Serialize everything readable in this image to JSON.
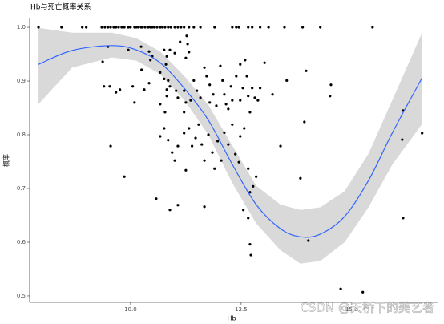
{
  "chart_data": {
    "type": "scatter",
    "title": "Hb与死亡概率关系",
    "x_label": "Hb",
    "y_label": "概率",
    "watermark": "CSDN @天桥下的美艺者",
    "point_color": "#000000",
    "xlim": [
      7.72,
      16.94
    ],
    "ylim": [
      0.488,
      1.018
    ],
    "xticks": [
      {
        "value": 10,
        "label": "10.0"
      },
      {
        "value": 12.5,
        "label": "12.5"
      },
      {
        "value": 15,
        "label": "15.0"
      }
    ],
    "yticks": [
      0.5,
      0.6,
      0.7,
      0.8,
      0.9,
      {
        "value": 1,
        "label": "1.0"
      }
    ],
    "points": {
      "x": [
        7.92,
        8.44,
        8.91,
        9.0,
        9.35,
        9.42,
        9.49,
        9.55,
        9.62,
        9.67,
        9.73,
        9.8,
        9.86,
        9.95,
        10.0,
        10.09,
        10.13,
        10.18,
        10.24,
        10.27,
        10.33,
        10.4,
        10.45,
        10.49,
        10.54,
        10.6,
        10.67,
        10.72,
        10.78,
        10.85,
        10.91,
        11.0,
        11.07,
        11.14,
        11.21,
        11.32,
        11.43,
        11.58,
        11.9,
        12.3,
        12.39,
        12.45,
        12.66,
        12.75,
        12.93,
        13.12,
        13.48,
        13.89,
        14.29,
        15.47,
        9.49,
        9.37,
        9.95,
        10.24,
        10.42,
        10.49,
        10.45,
        10.25,
        10.76,
        10.82,
        10.89,
        11.0,
        11.12,
        11.27,
        11.29,
        11.32,
        11.25,
        10.8,
        10.67,
        10.76,
        10.85,
        10.89,
        10.82,
        10.42,
        10.31,
        10.05,
        9.76,
        9.53,
        9.4,
        9.67,
        10.09,
        10.67,
        10.78,
        10.82,
        11.03,
        11.07,
        11.21,
        11.25,
        11.21,
        11.36,
        11.43,
        11.5,
        11.58,
        11.67,
        11.72,
        11.79,
        11.79,
        11.87,
        11.94,
        12.03,
        12.08,
        12.12,
        12.16,
        12.21,
        12.27,
        12.3,
        12.39,
        12.48,
        12.48,
        12.54,
        12.59,
        12.63,
        12.66,
        12.7,
        12.75,
        12.81,
        12.88,
        12.93,
        13.03,
        13.21,
        13.53,
        13.97,
        14.53,
        14.51,
        13.93,
        13.39,
        9.55,
        9.86,
        10.76,
        10.67,
        10.85,
        10.94,
        11.0,
        11.07,
        11.21,
        11.25,
        11.32,
        11.39,
        11.47,
        11.54,
        11.61,
        11.67,
        11.76,
        11.85,
        11.9,
        11.97,
        12.05,
        12.12,
        12.21,
        12.3,
        12.37,
        12.45,
        12.48,
        12.57,
        12.66,
        12.7,
        12.77,
        12.84,
        10.58,
        10.89,
        11.07,
        11.67,
        12.55,
        12.66,
        12.7,
        12.72,
        13.84,
        14.02,
        16.14,
        16.16,
        16.16,
        16.59,
        14.75,
        15.25
      ],
      "y": [
        1,
        1,
        1,
        1,
        1,
        1,
        1,
        1,
        1,
        1,
        1,
        1,
        1,
        1,
        1,
        1,
        1,
        1,
        1,
        1,
        1,
        1,
        1,
        1,
        1,
        1,
        1,
        1,
        1,
        1,
        1,
        1,
        1,
        1,
        1,
        1,
        1,
        1,
        1,
        1,
        1,
        1,
        1,
        1,
        1,
        1,
        1,
        1,
        1,
        1,
        0.964,
        0.936,
        0.958,
        0.964,
        0.955,
        0.946,
        0.939,
        0.921,
        0.958,
        0.946,
        0.958,
        0.952,
        0.973,
        0.984,
        0.969,
        0.954,
        0.943,
        0.931,
        0.916,
        0.904,
        0.901,
        0.89,
        0.884,
        0.896,
        0.884,
        0.89,
        0.884,
        0.89,
        0.89,
        0.879,
        0.86,
        0.857,
        0.842,
        0.872,
        0.882,
        0.869,
        0.882,
        0.86,
        0.842,
        0.864,
        0.901,
        0.882,
        0.869,
        0.925,
        0.909,
        0.893,
        0.86,
        0.875,
        0.854,
        0.928,
        0.901,
        0.875,
        0.857,
        0.848,
        0.89,
        0.864,
        0.909,
        0.931,
        0.864,
        0.887,
        0.939,
        0.909,
        0.872,
        0.842,
        0.887,
        0.869,
        0.864,
        0.887,
        0.934,
        0.875,
        0.901,
        0.919,
        0.893,
        0.872,
        0.824,
        0.779,
        0.779,
        0.722,
        0.812,
        0.797,
        0.79,
        0.767,
        0.752,
        0.779,
        0.803,
        0.734,
        0.812,
        0.779,
        0.794,
        0.819,
        0.782,
        0.752,
        0.8,
        0.767,
        0.737,
        0.788,
        0.752,
        0.804,
        0.782,
        0.819,
        0.764,
        0.749,
        0.797,
        0.812,
        0.737,
        0.693,
        0.704,
        0.722,
        0.681,
        0.66,
        0.669,
        0.666,
        0.66,
        0.645,
        0.596,
        0.576,
        0.719,
        0.603,
        0.791,
        0.845,
        0.645,
        0.803,
        0.513,
        0.507
      ]
    },
    "smooth": {
      "color": "#3366ff",
      "band_color": "#d9d9d9",
      "x": [
        7.92,
        8.68,
        9.58,
        10.13,
        10.67,
        11.21,
        11.76,
        12.3,
        12.84,
        13.39,
        13.84,
        14.29,
        14.84,
        15.38,
        15.92,
        16.59
      ],
      "fit": [
        0.931,
        0.957,
        0.966,
        0.958,
        0.934,
        0.887,
        0.827,
        0.745,
        0.67,
        0.625,
        0.61,
        0.615,
        0.648,
        0.715,
        0.804,
        0.906
      ],
      "upper": [
        0.999,
        0.99,
        0.99,
        0.98,
        0.955,
        0.91,
        0.855,
        0.78,
        0.705,
        0.67,
        0.66,
        0.665,
        0.695,
        0.765,
        0.865,
        0.99
      ],
      "lower": [
        0.857,
        0.925,
        0.944,
        0.938,
        0.913,
        0.865,
        0.8,
        0.71,
        0.635,
        0.585,
        0.56,
        0.565,
        0.6,
        0.665,
        0.745,
        0.82
      ]
    }
  }
}
